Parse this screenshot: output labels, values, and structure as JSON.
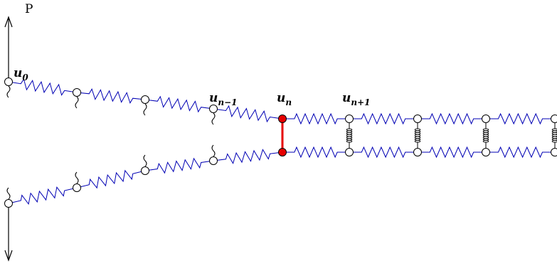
{
  "labels": {
    "force": "P",
    "u0": "u",
    "u0_sub": "0",
    "un_minus_1": "u",
    "un_minus_1_sub": "n−1",
    "un": "u",
    "un_sub": "n",
    "un_plus_1": "u",
    "un_plus_1_sub": "n+1"
  },
  "colors": {
    "spring": "#0000b4",
    "bond_broken": "#000000",
    "active_bond": "#e60000",
    "active_node": "#e60000",
    "node_fill": "#ffffff",
    "node_stroke": "#000000"
  },
  "structure": {
    "upper_chain_nodes": 9,
    "lower_chain_nodes": 9,
    "broken_bonds": 4,
    "active_bond_node_index": 4,
    "intact_bonds_after_crack_tip": 4
  }
}
